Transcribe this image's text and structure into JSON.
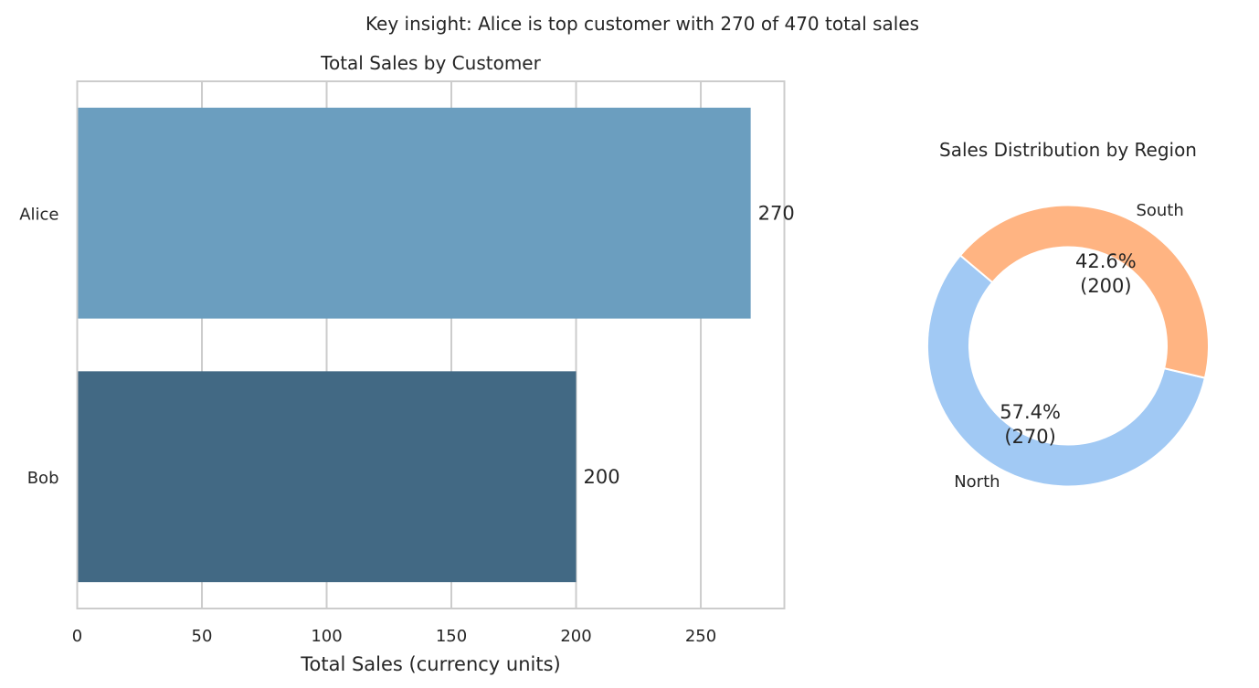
{
  "figure": {
    "suptitle": "Key insight: Alice is top customer with 270 of 470 total sales"
  },
  "chart_data": [
    {
      "type": "bar",
      "orientation": "horizontal",
      "title": "Total Sales by Customer",
      "xlabel": "Total Sales (currency units)",
      "ylabel": "",
      "categories": [
        "Alice",
        "Bob"
      ],
      "values": [
        270,
        200
      ],
      "value_labels": [
        "270",
        "200"
      ],
      "colors": [
        "#6b9ebf",
        "#426984"
      ],
      "xlim": [
        0,
        283.5
      ],
      "xticks": [
        0,
        50,
        100,
        150,
        200,
        250
      ],
      "xtick_labels": [
        "0",
        "50",
        "100",
        "150",
        "200",
        "250"
      ],
      "grid": true
    },
    {
      "type": "pie",
      "style": "donut",
      "title": "Sales Distribution by Region",
      "labels": [
        "North",
        "South"
      ],
      "values": [
        270,
        200
      ],
      "percent_labels": [
        "57.4%",
        "42.6%"
      ],
      "count_labels": [
        "(270)",
        "(200)"
      ],
      "colors": [
        "#a1c9f4",
        "#ffb482"
      ],
      "start_angle": 140
    }
  ]
}
